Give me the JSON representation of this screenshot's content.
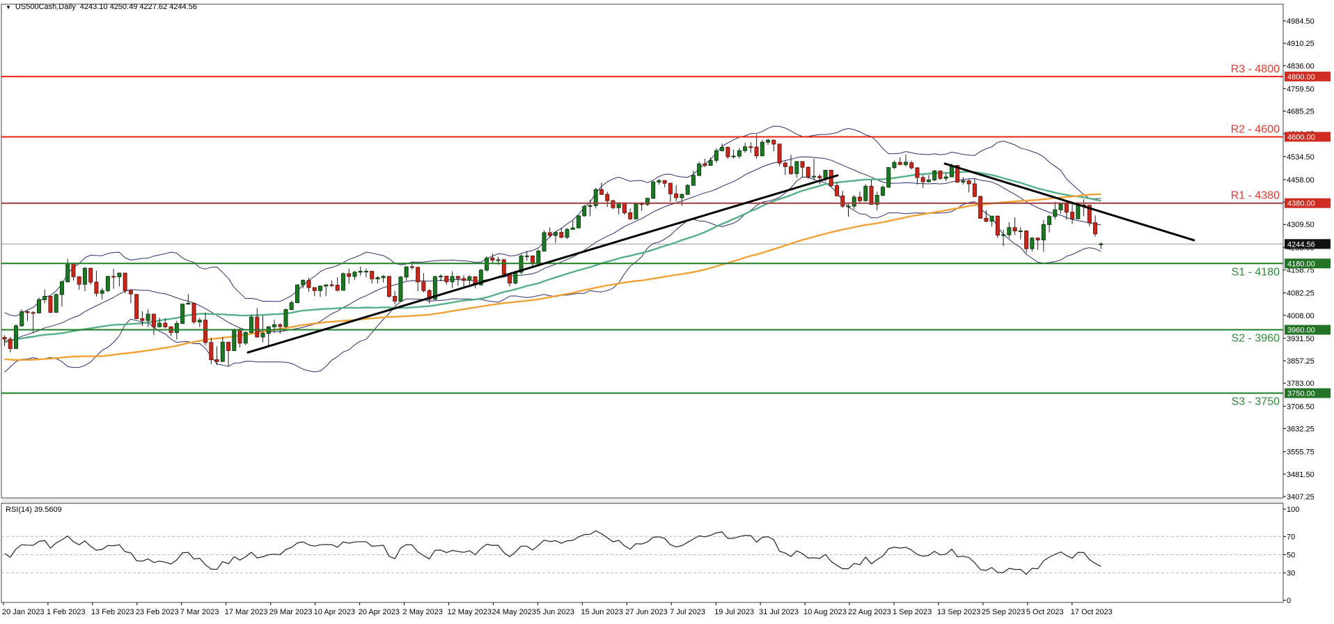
{
  "title": {
    "symbol": "US500Cash,Daily",
    "ohlc": "4243.10 4250.49 4227.62 4244.56"
  },
  "rsi": {
    "label": "RSI(14) 39.5609",
    "period": 14,
    "scale_labels": [
      "100",
      "70",
      "50",
      "30",
      "0"
    ],
    "scale_values": [
      100,
      70,
      50,
      30,
      0
    ],
    "dashed_levels": [
      70,
      50,
      30
    ]
  },
  "y_axis": {
    "ticks": [
      4984.5,
      4910.25,
      4836.0,
      4759.5,
      4685.25,
      4610.25,
      4534.5,
      4458.0,
      4383.75,
      4309.5,
      4233.0,
      4158.75,
      4082.25,
      4008.0,
      3931.5,
      3857.25,
      3783.0,
      3706.5,
      3632.25,
      3555.75,
      3481.5,
      3407.25
    ],
    "current_price_badge": "4244.56",
    "current_price": 4244.56
  },
  "x_axis": {
    "labels": [
      "20 Jan 2023",
      "1 Feb 2023",
      "13 Feb 2023",
      "23 Feb 2023",
      "7 Mar 2023",
      "17 Mar 2023",
      "29 Mar 2023",
      "10 Apr 2023",
      "20 Apr 2023",
      "2 May 2023",
      "12 May 2023",
      "24 May 2023",
      "5 Jun 2023",
      "15 Jun 2023",
      "27 Jun 2023",
      "7 Jul 2023",
      "19 Jul 2023",
      "31 Jul 2023",
      "10 Aug 2023",
      "22 Aug 2023",
      "1 Sep 2023",
      "13 Sep 2023",
      "25 Sep 2023",
      "5 Oct 2023",
      "17 Oct 2023"
    ]
  },
  "levels": [
    {
      "name": "R3",
      "label": "R3 - 4800",
      "price": 4800,
      "badge": "4800.00",
      "side": "resistance",
      "line_color": "#ed2015",
      "text_color": "#e03a30",
      "badge_bg": "#cf2d24"
    },
    {
      "name": "R2",
      "label": "R2 - 4600",
      "price": 4600,
      "badge": "4600.00",
      "side": "resistance",
      "line_color": "#ed2015",
      "text_color": "#e03a30",
      "badge_bg": "#cf2d24"
    },
    {
      "name": "R1",
      "label": "R1 - 4380",
      "price": 4380,
      "badge": "4380.00",
      "side": "resistance",
      "line_color": "#a03c3c",
      "text_color": "#e03a30",
      "badge_bg": "#cf2d24"
    },
    {
      "name": "S1",
      "label": "S1 - 4180",
      "price": 4180,
      "badge": "4180.00",
      "side": "support",
      "line_color": "#1c7d22",
      "text_color": "#2e8b3a",
      "badge_bg": "#247428"
    },
    {
      "name": "S2",
      "label": "S2 - 3960",
      "price": 3960,
      "badge": "3960.00",
      "side": "support",
      "line_color": "#1c7d22",
      "text_color": "#2e8b3a",
      "badge_bg": "#247428"
    },
    {
      "name": "S3",
      "label": "S3 - 3750",
      "price": 3750,
      "badge": "3750.00",
      "side": "support",
      "line_color": "#1c7d22",
      "text_color": "#2e8b3a",
      "badge_bg": "#247428"
    }
  ],
  "colors": {
    "bull_fill": "#1d7a24",
    "bull_stroke": "#0d3f10",
    "bear_fill": "#cc271c",
    "bear_stroke": "#6e140d",
    "wick": "#1a1a1a",
    "bollinger": "#2e2e6e",
    "sma50": "#56b087",
    "sma100": "#f2a235",
    "trendline": "#000000",
    "current_line": "#9a9a9a",
    "rsi_line": "#222222",
    "frame": "#444444",
    "rsi_grid": "#bbbbbb",
    "axis_text": "#000000",
    "current_badge_bg": "#111111",
    "badge_text": "#ffffff"
  },
  "chart_data": {
    "type": "candlestick",
    "symbol": "US500Cash",
    "timeframe": "Daily",
    "date_range": "18 Jan 2023 - 20 Oct 2023",
    "ylim": [
      3402,
      5039
    ],
    "overlays": {
      "bollinger": {
        "period": 20,
        "deviation": 2
      },
      "sma_teal": {
        "period": 50
      },
      "sma_orange": {
        "period": 100
      }
    },
    "trendlines": [
      {
        "kind": "ascending",
        "b1": 42.4,
        "p1": 3885,
        "b2": 145.1,
        "p2": 4472
      },
      {
        "kind": "descending",
        "b1": 163.8,
        "p1": 4511,
        "b2": 207.2,
        "p2": 4257
      }
    ],
    "warmup_closes": [
      3980,
      4030,
      4057,
      4030,
      3986,
      3955,
      3966,
      3924,
      3908,
      3918,
      3946,
      3979,
      4006,
      4067,
      4110,
      4122,
      4080,
      4006,
      3946,
      3901,
      3873,
      3899,
      3855,
      3790,
      3757,
      3719,
      3693,
      3678,
      3655,
      3640,
      3612,
      3585,
      3611,
      3639,
      3583,
      3589,
      3612,
      3677,
      3719,
      3675,
      3666,
      3665,
      3678,
      3695,
      3674,
      3588,
      3612,
      3635,
      3655,
      3719,
      3747,
      3770,
      3808,
      3828,
      3871,
      3902,
      3856,
      3949,
      3946,
      3998,
      3992,
      4024,
      3963,
      3958,
      3992,
      3963,
      3946,
      3934,
      3998,
      4027,
      4080,
      4076,
      3998,
      3941,
      3934,
      3852,
      3844,
      3830,
      3783,
      3829,
      3845,
      3809,
      3824,
      3852,
      3899,
      3892,
      3919,
      3895,
      3928,
      3961,
      3999,
      3990,
      3969,
      3972,
      3909,
      3919,
      3892,
      3911,
      3960,
      3937
    ],
    "candles": [
      [
        3935,
        3941,
        3906,
        3929
      ],
      [
        3929,
        3936,
        3885,
        3898
      ],
      [
        3898,
        3978,
        3897,
        3973
      ],
      [
        3973,
        4028,
        3971,
        4020
      ],
      [
        4020,
        4027,
        3989,
        4017
      ],
      [
        4017,
        4022,
        3949,
        4016
      ],
      [
        4016,
        4068,
        4014,
        4060
      ],
      [
        4060,
        4094,
        4048,
        4071
      ],
      [
        4071,
        4073,
        4015,
        4018
      ],
      [
        4018,
        4080,
        4016,
        4077
      ],
      [
        4077,
        4124,
        4037,
        4119
      ],
      [
        4119,
        4195,
        4117,
        4180
      ],
      [
        4180,
        4182,
        4123,
        4136
      ],
      [
        4136,
        4138,
        4093,
        4111
      ],
      [
        4111,
        4168,
        4088,
        4164
      ],
      [
        4164,
        4166,
        4110,
        4118
      ],
      [
        4118,
        4156,
        4070,
        4081
      ],
      [
        4081,
        4098,
        4061,
        4090
      ],
      [
        4090,
        4139,
        4085,
        4137
      ],
      [
        4137,
        4162,
        4096,
        4136
      ],
      [
        4136,
        4150,
        4104,
        4148
      ],
      [
        4148,
        4149,
        4081,
        4090
      ],
      [
        4090,
        4092,
        4048,
        4079
      ],
      [
        4077,
        4079,
        3995,
        3997
      ],
      [
        3997,
        4022,
        3973,
        3991
      ],
      [
        3991,
        4028,
        3969,
        4012
      ],
      [
        4012,
        4012,
        3943,
        3970
      ],
      [
        3970,
        4000,
        3968,
        3982
      ],
      [
        3982,
        3998,
        3965,
        3970
      ],
      [
        3970,
        3971,
        3939,
        3951
      ],
      [
        3951,
        3990,
        3928,
        3981
      ],
      [
        3981,
        4048,
        3981,
        4045
      ],
      [
        4045,
        4078,
        4044,
        4048
      ],
      [
        4048,
        4050,
        3980,
        3986
      ],
      [
        3986,
        4000,
        3969,
        3992
      ],
      [
        3992,
        4017,
        3908,
        3918
      ],
      [
        3918,
        3934,
        3846,
        3861
      ],
      [
        3861,
        3905,
        3843,
        3855
      ],
      [
        3855,
        3937,
        3853,
        3919
      ],
      [
        3919,
        3920,
        3838,
        3891
      ],
      [
        3891,
        3964,
        3889,
        3960
      ],
      [
        3960,
        3965,
        3901,
        3916
      ],
      [
        3916,
        3956,
        3909,
        3951
      ],
      [
        3951,
        4010,
        3949,
        4002
      ],
      [
        4002,
        4032,
        3934,
        3936
      ],
      [
        3936,
        4007,
        3919,
        3948
      ],
      [
        3948,
        3972,
        3904,
        3970
      ],
      [
        3970,
        3994,
        3949,
        3977
      ],
      [
        3977,
        3982,
        3947,
        3971
      ],
      [
        3971,
        4030,
        3967,
        4027
      ],
      [
        4027,
        4057,
        4025,
        4050
      ],
      [
        4050,
        4110,
        4048,
        4109
      ],
      [
        4109,
        4127,
        4098,
        4124
      ],
      [
        4124,
        4133,
        4086,
        4100
      ],
      [
        4100,
        4101,
        4072,
        4090
      ],
      [
        4090,
        4107,
        4069,
        4105
      ],
      [
        4105,
        4110,
        4072,
        4109
      ],
      [
        4109,
        4124,
        4102,
        4108
      ],
      [
        4108,
        4134,
        4087,
        4091
      ],
      [
        4091,
        4150,
        4091,
        4146
      ],
      [
        4146,
        4163,
        4113,
        4137
      ],
      [
        4137,
        4156,
        4125,
        4151
      ],
      [
        4151,
        4169,
        4140,
        4154
      ],
      [
        4154,
        4163,
        4134,
        4154
      ],
      [
        4154,
        4156,
        4114,
        4129
      ],
      [
        4129,
        4138,
        4113,
        4133
      ],
      [
        4133,
        4142,
        4117,
        4137
      ],
      [
        4137,
        4138,
        4066,
        4071
      ],
      [
        4071,
        4089,
        4044,
        4055
      ],
      [
        4055,
        4138,
        4052,
        4135
      ],
      [
        4135,
        4170,
        4123,
        4169
      ],
      [
        4169,
        4186,
        4160,
        4167
      ],
      [
        4167,
        4169,
        4088,
        4119
      ],
      [
        4119,
        4148,
        4084,
        4090
      ],
      [
        4090,
        4095,
        4048,
        4061
      ],
      [
        4061,
        4140,
        4060,
        4136
      ],
      [
        4136,
        4144,
        4120,
        4138
      ],
      [
        4138,
        4139,
        4110,
        4119
      ],
      [
        4119,
        4154,
        4098,
        4137
      ],
      [
        4137,
        4139,
        4106,
        4130
      ],
      [
        4130,
        4141,
        4102,
        4124
      ],
      [
        4124,
        4141,
        4110,
        4136
      ],
      [
        4136,
        4137,
        4098,
        4109
      ],
      [
        4109,
        4162,
        4106,
        4158
      ],
      [
        4158,
        4204,
        4153,
        4198
      ],
      [
        4198,
        4213,
        4180,
        4191
      ],
      [
        4191,
        4202,
        4176,
        4192
      ],
      [
        4192,
        4196,
        4142,
        4145
      ],
      [
        4145,
        4148,
        4104,
        4115
      ],
      [
        4115,
        4156,
        4110,
        4151
      ],
      [
        4151,
        4210,
        4144,
        4205
      ],
      [
        4205,
        4222,
        4189,
        4205
      ],
      [
        4205,
        4206,
        4166,
        4179
      ],
      [
        4179,
        4227,
        4171,
        4221
      ],
      [
        4221,
        4290,
        4220,
        4282
      ],
      [
        4282,
        4299,
        4266,
        4273
      ],
      [
        4273,
        4288,
        4248,
        4283
      ],
      [
        4283,
        4299,
        4263,
        4267
      ],
      [
        4267,
        4298,
        4261,
        4293
      ],
      [
        4293,
        4322,
        4291,
        4298
      ],
      [
        4298,
        4340,
        4296,
        4338
      ],
      [
        4338,
        4375,
        4335,
        4369
      ],
      [
        4369,
        4391,
        4337,
        4372
      ],
      [
        4372,
        4431,
        4362,
        4425
      ],
      [
        4425,
        4448,
        4407,
        4409
      ],
      [
        4409,
        4418,
        4367,
        4388
      ],
      [
        4388,
        4391,
        4360,
        4365
      ],
      [
        4365,
        4382,
        4343,
        4381
      ],
      [
        4381,
        4382,
        4341,
        4348
      ],
      [
        4348,
        4362,
        4324,
        4328
      ],
      [
        4328,
        4380,
        4326,
        4378
      ],
      [
        4378,
        4383,
        4354,
        4376
      ],
      [
        4376,
        4398,
        4370,
        4396
      ],
      [
        4396,
        4453,
        4395,
        4450
      ],
      [
        4450,
        4460,
        4442,
        4455
      ],
      [
        4455,
        4456,
        4433,
        4446
      ],
      [
        4446,
        4447,
        4385,
        4411
      ],
      [
        4411,
        4440,
        4385,
        4398
      ],
      [
        4398,
        4412,
        4371,
        4409
      ],
      [
        4409,
        4443,
        4408,
        4439
      ],
      [
        4439,
        4488,
        4438,
        4472
      ],
      [
        4472,
        4517,
        4470,
        4510
      ],
      [
        4510,
        4527,
        4499,
        4505
      ],
      [
        4505,
        4532,
        4504,
        4522
      ],
      [
        4522,
        4562,
        4514,
        4554
      ],
      [
        4554,
        4578,
        4551,
        4565
      ],
      [
        4565,
        4568,
        4527,
        4534
      ],
      [
        4534,
        4557,
        4528,
        4536
      ],
      [
        4536,
        4563,
        4528,
        4554
      ],
      [
        4554,
        4580,
        4547,
        4567
      ],
      [
        4567,
        4582,
        4547,
        4566
      ],
      [
        4566,
        4607,
        4528,
        4537
      ],
      [
        4537,
        4590,
        4535,
        4582
      ],
      [
        4582,
        4594,
        4573,
        4589
      ],
      [
        4589,
        4591,
        4552,
        4576
      ],
      [
        4576,
        4577,
        4503,
        4513
      ],
      [
        4513,
        4519,
        4474,
        4501
      ],
      [
        4501,
        4540,
        4474,
        4478
      ],
      [
        4478,
        4519,
        4464,
        4518
      ],
      [
        4518,
        4519,
        4464,
        4499
      ],
      [
        4499,
        4502,
        4461,
        4467
      ],
      [
        4467,
        4527,
        4457,
        4469
      ],
      [
        4469,
        4476,
        4443,
        4464
      ],
      [
        4464,
        4490,
        4453,
        4489
      ],
      [
        4489,
        4490,
        4432,
        4438
      ],
      [
        4438,
        4449,
        4403,
        4404
      ],
      [
        4404,
        4421,
        4364,
        4370
      ],
      [
        4370,
        4381,
        4335,
        4370
      ],
      [
        4370,
        4407,
        4360,
        4400
      ],
      [
        4400,
        4418,
        4382,
        4388
      ],
      [
        4388,
        4443,
        4385,
        4436
      ],
      [
        4436,
        4458,
        4375,
        4376
      ],
      [
        4376,
        4418,
        4356,
        4406
      ],
      [
        4406,
        4439,
        4403,
        4433
      ],
      [
        4433,
        4500,
        4431,
        4498
      ],
      [
        4498,
        4521,
        4493,
        4515
      ],
      [
        4515,
        4532,
        4507,
        4508
      ],
      [
        4508,
        4541,
        4501,
        4516
      ],
      [
        4514,
        4520,
        4492,
        4497
      ],
      [
        4497,
        4500,
        4442,
        4465
      ],
      [
        4465,
        4473,
        4430,
        4451
      ],
      [
        4451,
        4473,
        4448,
        4457
      ],
      [
        4457,
        4490,
        4453,
        4487
      ],
      [
        4487,
        4487,
        4457,
        4462
      ],
      [
        4462,
        4479,
        4453,
        4467
      ],
      [
        4467,
        4511,
        4466,
        4505
      ],
      [
        4505,
        4506,
        4447,
        4450
      ],
      [
        4450,
        4466,
        4442,
        4454
      ],
      [
        4454,
        4459,
        4416,
        4444
      ],
      [
        4444,
        4462,
        4400,
        4402
      ],
      [
        4402,
        4405,
        4329,
        4330
      ],
      [
        4330,
        4357,
        4316,
        4320
      ],
      [
        4320,
        4338,
        4302,
        4337
      ],
      [
        4337,
        4339,
        4265,
        4274
      ],
      [
        4274,
        4292,
        4238,
        4275
      ],
      [
        4275,
        4317,
        4264,
        4299
      ],
      [
        4299,
        4333,
        4274,
        4288
      ],
      [
        4288,
        4300,
        4260,
        4288
      ],
      [
        4288,
        4289,
        4216,
        4229
      ],
      [
        4229,
        4268,
        4220,
        4264
      ],
      [
        4264,
        4267,
        4225,
        4258
      ],
      [
        4258,
        4324,
        4219,
        4309
      ],
      [
        4309,
        4341,
        4283,
        4336
      ],
      [
        4336,
        4385,
        4327,
        4358
      ],
      [
        4358,
        4379,
        4345,
        4377
      ],
      [
        4377,
        4386,
        4325,
        4350
      ],
      [
        4350,
        4377,
        4311,
        4328
      ],
      [
        4328,
        4383,
        4327,
        4374
      ],
      [
        4374,
        4393,
        4337,
        4373
      ],
      [
        4373,
        4374,
        4303,
        4315
      ],
      [
        4315,
        4339,
        4269,
        4278
      ],
      [
        4243.1,
        4250.5,
        4227.6,
        4244.56
      ]
    ]
  }
}
